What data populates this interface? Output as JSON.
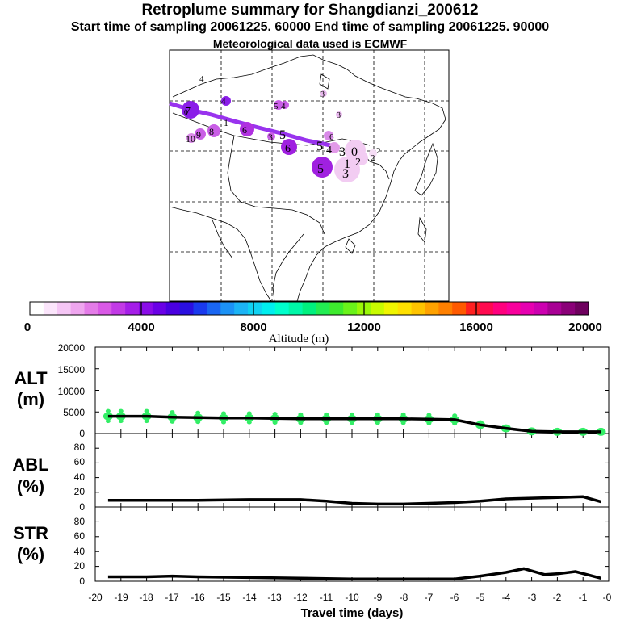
{
  "header": {
    "title": "Retroplume summary for Shangdianzi_200612",
    "sampling": "Start time of sampling 20061225. 60000     End time of sampling 20061225. 90000",
    "met": "Meteorological data used is ECMWF"
  },
  "colorbar": {
    "label": "Altitude (m)",
    "ticks": [
      "0",
      "4000",
      "8000",
      "12000",
      "16000",
      "20000"
    ],
    "colors": [
      "#ffffff",
      "#fbe5fb",
      "#f5c6f5",
      "#efa6ef",
      "#e47ce8",
      "#d959e6",
      "#c23ae6",
      "#a51ee8",
      "#8a0ce8",
      "#6a00e6",
      "#4a00e0",
      "#2a10e0",
      "#1a3aee",
      "#1a66f2",
      "#1c92f5",
      "#1cb4f5",
      "#10d2f2",
      "#00eeee",
      "#00ffcc",
      "#00f7a8",
      "#00f07e",
      "#22ec52",
      "#3eea2e",
      "#6af21a",
      "#9af808",
      "#c8fb00",
      "#f0f500",
      "#ffe000",
      "#ffc400",
      "#ffa200",
      "#ff8000",
      "#ff5a00",
      "#ff2020",
      "#ff0a50",
      "#ff007e",
      "#f8009c",
      "#e600b0",
      "#cc00b0",
      "#a80094",
      "#8a0078",
      "#6e005e"
    ]
  },
  "map_labels": [
    "4",
    "3",
    "5",
    "4",
    "3",
    "6",
    "5",
    "4",
    "3",
    "1",
    "2",
    "0",
    "2",
    "3",
    "5",
    "6",
    "8",
    "9",
    "10",
    "7",
    "6",
    "5",
    "4",
    "3",
    "2",
    "1",
    "0"
  ],
  "chart_data": [
    {
      "type": "line",
      "name": "ALT",
      "ylabel": "ALT",
      "yunit": "(m)",
      "ylim": [
        0,
        20000
      ],
      "yticks": [
        "20000",
        "15000",
        "10000",
        "5000",
        "0"
      ],
      "x": [
        -19.5,
        -19,
        -18,
        -17,
        -16,
        -15,
        -14,
        -13,
        -12,
        -11,
        -10,
        -9,
        -8,
        -7,
        -6,
        -5,
        -4,
        -3,
        -2,
        -1,
        -0.3
      ],
      "values": [
        4000,
        4000,
        4000,
        3800,
        3700,
        3600,
        3600,
        3500,
        3400,
        3400,
        3400,
        3400,
        3400,
        3300,
        3200,
        2000,
        1200,
        500,
        400,
        400,
        400
      ]
    },
    {
      "type": "line",
      "name": "ABL",
      "ylabel": "ABL",
      "yunit": "(%)",
      "ylim": [
        0,
        100
      ],
      "yticks": [
        "80",
        "60",
        "40",
        "20",
        "0"
      ],
      "x": [
        -19.5,
        -18,
        -16,
        -14,
        -12,
        -11,
        -10,
        -9,
        -8,
        -7,
        -6,
        -5,
        -4,
        -3,
        -2,
        -1,
        -0.3
      ],
      "values": [
        9,
        9,
        9,
        10,
        10,
        8,
        5,
        4,
        4,
        5,
        6,
        8,
        11,
        12,
        13,
        14,
        7
      ]
    },
    {
      "type": "line",
      "name": "STR",
      "ylabel": "STR",
      "yunit": "(%)",
      "ylim": [
        0,
        100
      ],
      "yticks": [
        "80",
        "60",
        "40",
        "20",
        "0"
      ],
      "x": [
        -19.5,
        -18,
        -17,
        -16,
        -14,
        -12,
        -10,
        -8,
        -6,
        -5,
        -4,
        -3.3,
        -2.5,
        -2,
        -1.3,
        -0.3
      ],
      "values": [
        6,
        6,
        7,
        6,
        5,
        4,
        3,
        3,
        3,
        7,
        12,
        17,
        9,
        10,
        13,
        4
      ]
    }
  ],
  "xaxis": {
    "label": "Travel time (days)",
    "ticks": [
      "-20",
      "-19",
      "-18",
      "-17",
      "-16",
      "-15",
      "-14",
      "-13",
      "-12",
      "-11",
      "-10",
      "-9",
      "-8",
      "-7",
      "-6",
      "-5",
      "-4",
      "-3",
      "-2",
      "-1",
      "-0"
    ]
  }
}
